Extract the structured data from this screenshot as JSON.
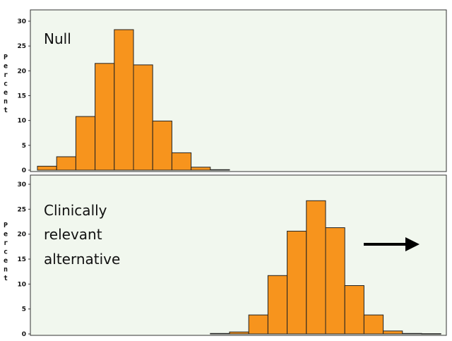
{
  "chart_data": [
    {
      "type": "bar",
      "label": "Null",
      "ylabel": "Percent",
      "ylim": [
        0,
        30
      ],
      "yticks": [
        0,
        5,
        10,
        15,
        20,
        25,
        30
      ],
      "bins": 21,
      "values": [
        0.8,
        2.7,
        10.8,
        21.5,
        28.3,
        21.2,
        9.9,
        3.5,
        0.6,
        0.1,
        0,
        0,
        0,
        0,
        0,
        0,
        0,
        0,
        0,
        0,
        0
      ],
      "bar_color": "#f7941d"
    },
    {
      "type": "bar",
      "label_lines": [
        "Clinically",
        "relevant",
        "alternative"
      ],
      "ylabel": "Percent",
      "ylim": [
        0,
        30
      ],
      "yticks": [
        0,
        5,
        10,
        15,
        20,
        25,
        30
      ],
      "bins": 21,
      "values": [
        0,
        0,
        0,
        0,
        0,
        0,
        0,
        0,
        0,
        0.1,
        0.4,
        3.8,
        11.7,
        20.6,
        26.7,
        21.3,
        9.7,
        3.8,
        0.6,
        0.1,
        0.05
      ],
      "bar_color": "#f7941d",
      "arrow": "right"
    }
  ]
}
